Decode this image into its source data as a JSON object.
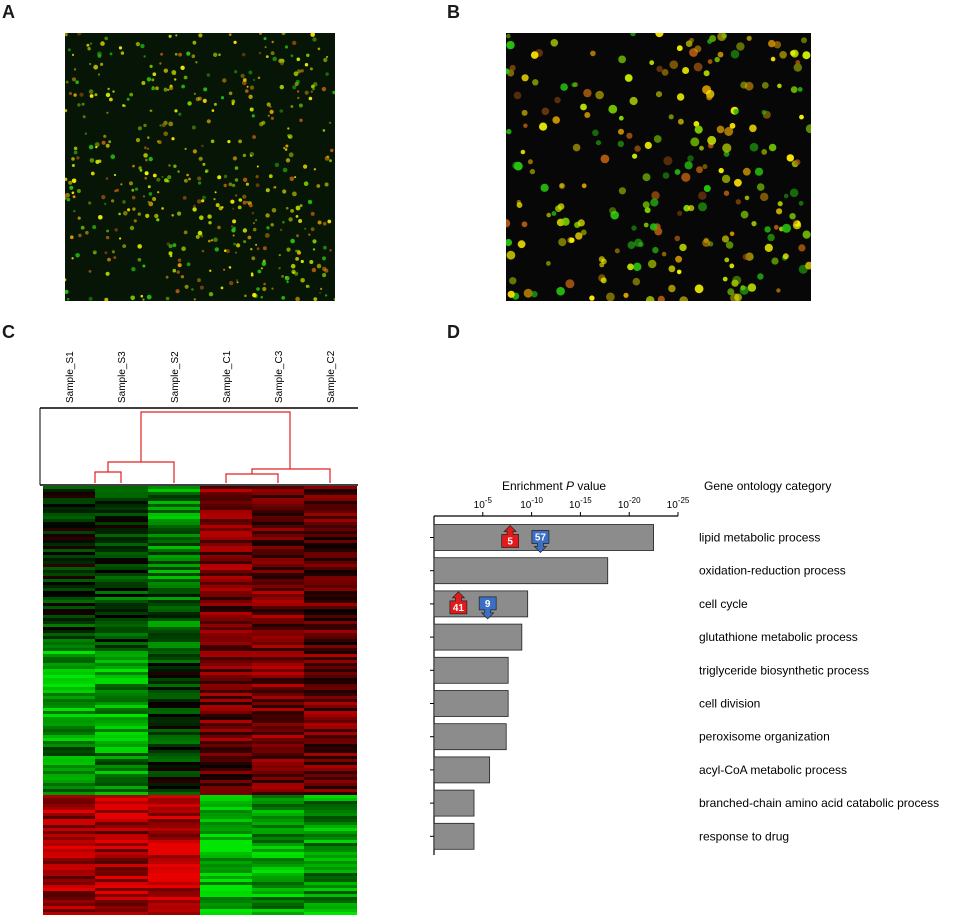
{
  "panels": {
    "a": {
      "label": "A"
    },
    "b": {
      "label": "B"
    },
    "c": {
      "label": "C"
    },
    "d": {
      "label": "D"
    }
  },
  "heatmap": {
    "samples": [
      "Sample_S1",
      "Sample_S3",
      "Sample_S2",
      "Sample_C1",
      "Sample_C3",
      "Sample_C2"
    ],
    "colors": {
      "up": "#e00000",
      "down": "#00e000",
      "neutral": "#000000",
      "dendrogram": "#e02020"
    }
  },
  "chart_data": {
    "type": "bar",
    "orientation": "horizontal",
    "xlabel_prefix": "Enrichment ",
    "xlabel_italic": "P",
    "xlabel_suffix": " value",
    "category_header": "Gene ontology category",
    "x_axis": "-log10(P value)",
    "xlim": [
      0,
      25
    ],
    "ticks": [
      {
        "value": 5,
        "base": "10",
        "exp": "-5"
      },
      {
        "value": 10,
        "base": "10",
        "exp": "-10"
      },
      {
        "value": 15,
        "base": "10",
        "exp": "-15"
      },
      {
        "value": 20,
        "base": "10",
        "exp": "-20"
      },
      {
        "value": 25,
        "base": "10",
        "exp": "-25"
      }
    ],
    "categories": [
      "lipid metabolic process",
      "oxidation-reduction process",
      "cell cycle",
      "glutathione metabolic process",
      "triglyceride biosynthetic process",
      "cell division",
      "peroxisome organization",
      "acyl-CoA metabolic process",
      "branched-chain amino acid catabolic process",
      "response to drug"
    ],
    "values": [
      22.5,
      17.8,
      9.6,
      9.0,
      7.6,
      7.6,
      7.4,
      5.7,
      4.1,
      4.1
    ],
    "badges": [
      {
        "category_index": 0,
        "direction": "up",
        "count": "5",
        "at": 7.8,
        "color": "#e31a1c"
      },
      {
        "category_index": 0,
        "direction": "down",
        "count": "57",
        "at": 10.9,
        "color": "#3a6fc4"
      },
      {
        "category_index": 2,
        "direction": "up",
        "count": "41",
        "at": 2.5,
        "color": "#e31a1c"
      },
      {
        "category_index": 2,
        "direction": "down",
        "count": "9",
        "at": 5.5,
        "color": "#3a6fc4"
      }
    ],
    "bar_color": "#8c8c8c"
  }
}
